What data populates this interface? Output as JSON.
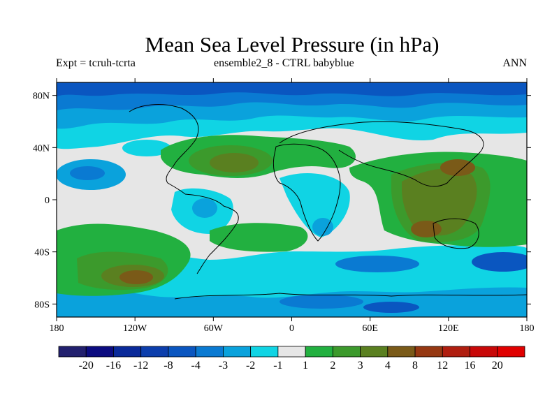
{
  "title": "Mean Sea Level Pressure (in hPa)",
  "subtitle_left": "Expt = tcruh-tcrta",
  "subtitle_center": "ensemble2_8 - CTRL babyblue",
  "subtitle_right": "ANN",
  "lat_ticks": [
    "80N",
    "40N",
    "0",
    "40S",
    "80S"
  ],
  "lon_ticks": [
    "180",
    "120W",
    "60W",
    "0",
    "60E",
    "120E",
    "180"
  ],
  "colorbar": {
    "labels": [
      "-20",
      "-16",
      "-12",
      "-8",
      "-4",
      "-3",
      "-2",
      "-1",
      "1",
      "2",
      "3",
      "4",
      "8",
      "12",
      "16",
      "20"
    ],
    "colors": [
      "#22206e",
      "#0c0c80",
      "#0a2a9a",
      "#0c3eac",
      "#0a56c0",
      "#0a7ad2",
      "#0aa2dc",
      "#10d4e4",
      "#e6e6e6",
      "#22b040",
      "#3c9a2c",
      "#5a8020",
      "#7a5a18",
      "#963812",
      "#b01e10",
      "#c80808",
      "#e00000"
    ]
  }
}
